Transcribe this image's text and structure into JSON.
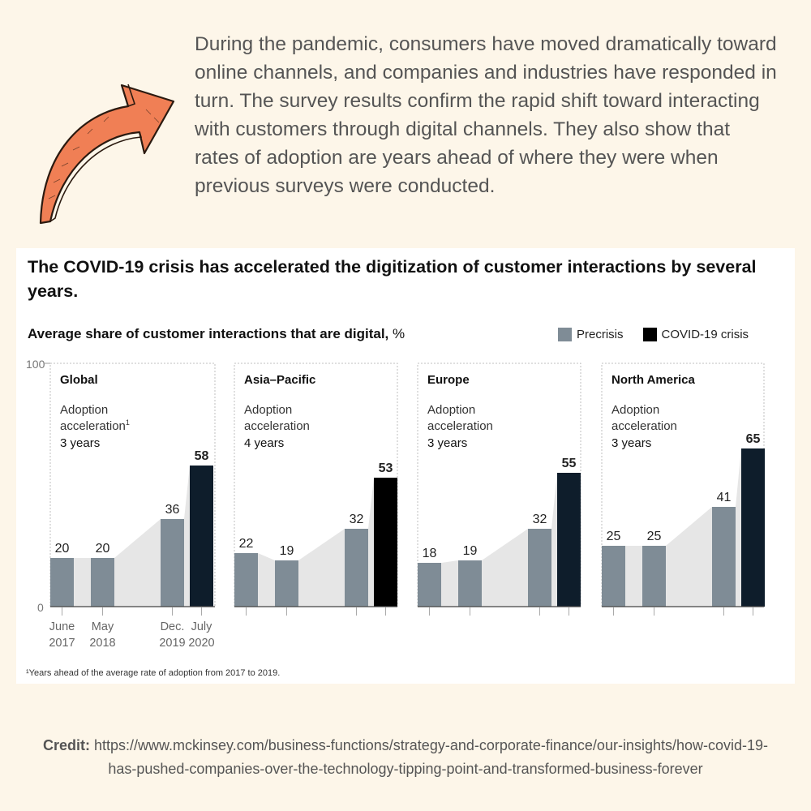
{
  "intro_text": "During the pandemic, consumers have moved dramatically toward online channels, and companies and industries have responded in turn. The survey results confirm the rapid shift toward interacting with customers through digital channels. They also show that rates of adoption are years ahead of where they were when previous surveys were conducted.",
  "credit": {
    "label": "Credit:",
    "url": "https://www.mckinsey.com/business-functions/strategy-and-corporate-finance/our-insights/how-covid-19-has-pushed-companies-over-the-technology-tipping-point-and-transformed-business-forever"
  },
  "colors": {
    "background": "#fdf6e9",
    "arrow": "#f07f55",
    "precrisis": "#7f8c96",
    "covid": "#0e1d2b",
    "area": "#e6e6e6"
  },
  "chart_data": {
    "type": "bar",
    "title": "The COVID-19 crisis has accelerated the digitization of customer interactions by several years.",
    "ylabel": "Average share of customer interactions that are digital,",
    "ylabel_unit": "%",
    "ylim": [
      0,
      100
    ],
    "y_ticks": [
      "100",
      "0"
    ],
    "x_tick_labels": [
      [
        "June",
        "2017"
      ],
      [
        "May",
        "2018"
      ],
      [
        "Dec.",
        "2019"
      ],
      [
        "July",
        "2020"
      ]
    ],
    "legend": [
      {
        "label": "Precrisis",
        "color": "#7f8c96"
      },
      {
        "label": "COVID-19 crisis",
        "color": "#0e1d2b"
      }
    ],
    "legend_position": "top-right",
    "footnote": "¹Years ahead of the average rate of adoption from 2017 to 2019.",
    "panels": [
      {
        "region": "Global",
        "adoption_line1": "Adoption",
        "adoption_line2": "acceleration",
        "adoption_sup": "1",
        "years": "3 years",
        "values": [
          20,
          20,
          36,
          58
        ],
        "covid_color": "#0e1d2b"
      },
      {
        "region": "Asia–Pacific",
        "adoption_line1": "Adoption",
        "adoption_line2": "acceleration",
        "adoption_sup": "",
        "years": "4 years",
        "values": [
          22,
          19,
          32,
          53
        ],
        "covid_color": "#000000"
      },
      {
        "region": "Europe",
        "adoption_line1": "Adoption",
        "adoption_line2": "acceleration",
        "adoption_sup": "",
        "years": "3 years",
        "values": [
          18,
          19,
          32,
          55
        ],
        "covid_color": "#0e1d2b"
      },
      {
        "region": "North America",
        "adoption_line1": "Adoption",
        "adoption_line2": "acceleration",
        "adoption_sup": "",
        "years": "3 years",
        "values": [
          25,
          25,
          41,
          65
        ],
        "covid_color": "#0e1d2b"
      }
    ]
  }
}
